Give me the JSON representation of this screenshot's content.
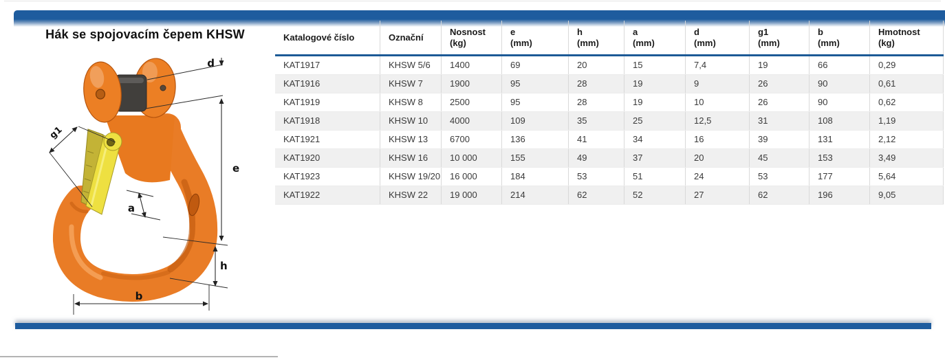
{
  "page": {
    "title": "Hák se spojovacím čepem KHSW"
  },
  "diagram": {
    "description": "orange-clevis-sling-hook-with-yellow-safety-latch",
    "labels": {
      "d": "d",
      "e": "e",
      "g1": "g1",
      "a": "a",
      "h": "h",
      "b": "b"
    },
    "hook_color": "#E97C26",
    "latch_color": "#EEE041",
    "pin_color": "#413F3C"
  },
  "table": {
    "columns": [
      {
        "label": "Katalogové číslo",
        "unit": ""
      },
      {
        "label": "Označní",
        "unit": ""
      },
      {
        "label": "Nosnost",
        "unit": "(kg)"
      },
      {
        "label": "e",
        "unit": "(mm)"
      },
      {
        "label": "h",
        "unit": "(mm)"
      },
      {
        "label": "a",
        "unit": "(mm)"
      },
      {
        "label": "d",
        "unit": "(mm)"
      },
      {
        "label": "g1",
        "unit": "(mm)"
      },
      {
        "label": "b",
        "unit": "(mm)"
      },
      {
        "label": "Hmotnost",
        "unit": "(kg)"
      }
    ],
    "rows": [
      [
        "KAT1917",
        "KHSW 5/6",
        "1400",
        "69",
        "20",
        "15",
        "7,4",
        "19",
        "66",
        "0,29"
      ],
      [
        "KAT1916",
        "KHSW 7",
        "1900",
        "95",
        "28",
        "19",
        "9",
        "26",
        "90",
        "0,61"
      ],
      [
        "KAT1919",
        "KHSW 8",
        "2500",
        "95",
        "28",
        "19",
        "10",
        "26",
        "90",
        "0,62"
      ],
      [
        "KAT1918",
        "KHSW 10",
        "4000",
        "109",
        "35",
        "25",
        "12,5",
        "31",
        "108",
        "1,19"
      ],
      [
        "KAT1921",
        "KHSW 13",
        "6700",
        "136",
        "41",
        "34",
        "16",
        "39",
        "131",
        "2,12"
      ],
      [
        "KAT1920",
        "KHSW 16",
        "10 000",
        "155",
        "49",
        "37",
        "20",
        "45",
        "153",
        "3,49"
      ],
      [
        "KAT1923",
        "KHSW 19/20",
        "16 000",
        "184",
        "53",
        "51",
        "24",
        "53",
        "177",
        "5,64"
      ],
      [
        "KAT1922",
        "KHSW 22",
        "19 000",
        "214",
        "62",
        "52",
        "27",
        "62",
        "196",
        "9,05"
      ]
    ]
  },
  "colors": {
    "accent_blue": "#1E5C9E",
    "header_rule_blue": "#1C5A96",
    "row_alt": "#F0F0F0",
    "grid_line": "#D9D9D9"
  }
}
